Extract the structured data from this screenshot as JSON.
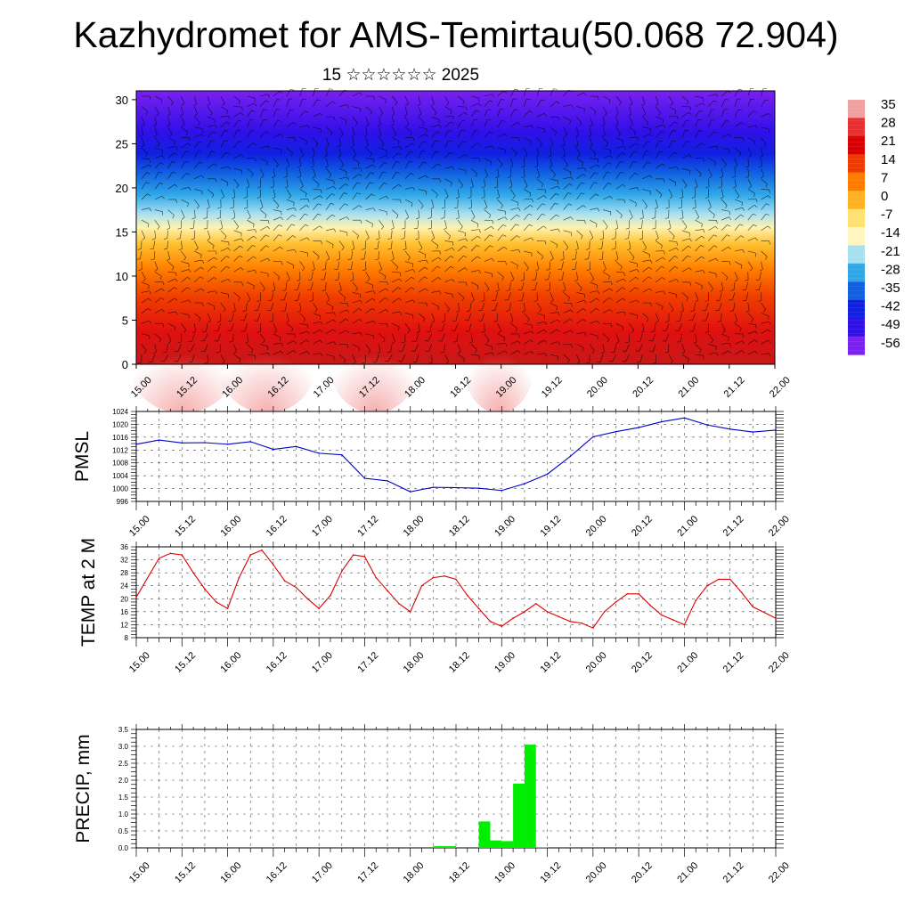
{
  "title": "Kazhydromet for AMS-Temirtau(50.068 72.904)",
  "subtitle": "15 ☆☆☆☆☆☆ 2025",
  "time_labels": [
    "15.00",
    "15.12",
    "16.00",
    "16.12",
    "17.00",
    "17.12",
    "18.00",
    "18.12",
    "19.00",
    "19.12",
    "20.00",
    "20.12",
    "21.00",
    "21.12",
    "22.00"
  ],
  "colors": {
    "pmsl_line": "#0000cc",
    "temp_line": "#dd0000",
    "precip_bar": "#00ee00",
    "grid": "#000000"
  },
  "chart_data": [
    {
      "type": "heatmap",
      "name": "temperature-cross-section",
      "xlabel": "",
      "ylabel": "",
      "ylim": [
        0,
        31
      ],
      "y_ticks": [
        0,
        5,
        10,
        15,
        20,
        25,
        30
      ],
      "x_tick_labels": [
        "15.00",
        "15.12",
        "16.00",
        "16.12",
        "17.00",
        "17.12",
        "18.00",
        "18.12",
        "19.00",
        "19.12",
        "20.00",
        "20.12",
        "21.00",
        "21.12",
        "22.00"
      ],
      "colorbar": {
        "labels": [
          "35",
          "28",
          "21",
          "14",
          "7",
          "0",
          "-7",
          "-14",
          "-21",
          "-28",
          "-35",
          "-42",
          "-49",
          "-56"
        ],
        "stops": [
          "#f0a0a0",
          "#e83030",
          "#d80000",
          "#ee3a00",
          "#ff7a00",
          "#ffb020",
          "#ffe070",
          "#fff6c0",
          "#a8e0f0",
          "#30a8e8",
          "#1060e0",
          "#1020e0",
          "#3010e8",
          "#7a20f0"
        ]
      },
      "layers": [
        {
          "level": 0,
          "temp": 30
        },
        {
          "level": 5,
          "temp": 22
        },
        {
          "level": 10,
          "temp": 12
        },
        {
          "level": 15,
          "temp": -10
        },
        {
          "level": 20,
          "temp": -30
        },
        {
          "level": 25,
          "temp": -55
        },
        {
          "level": 30,
          "temp": -60
        }
      ],
      "overlay": "wind barbs"
    },
    {
      "type": "line",
      "name": "pmsl",
      "ylabel": "PMSL",
      "ylim": [
        996,
        1024
      ],
      "y_ticks": [
        996,
        1000,
        1004,
        1008,
        1012,
        1016,
        1020,
        1024
      ],
      "x_tick_labels": [
        "15.00",
        "15.12",
        "16.00",
        "16.12",
        "17.00",
        "17.12",
        "18.00",
        "18.12",
        "19.00",
        "19.12",
        "20.00",
        "20.12",
        "21.00",
        "21.12",
        "22.00"
      ],
      "x_range": [
        0,
        168
      ],
      "series": [
        {
          "x": [
            0,
            6,
            12,
            18,
            24,
            30,
            36,
            42,
            48,
            54,
            60,
            66,
            72,
            78,
            84,
            90,
            96,
            102,
            108,
            114,
            120,
            126,
            132,
            138,
            144,
            150,
            156,
            162,
            168
          ],
          "y": [
            1013.8,
            1015.1,
            1014.2,
            1014.3,
            1013.8,
            1014.6,
            1012.2,
            1013.1,
            1011.0,
            1010.5,
            1003.2,
            1002.4,
            999.0,
            1000.4,
            1000.3,
            1000.1,
            999.4,
            1001.5,
            1004.5,
            1010.0,
            1016.1,
            1017.7,
            1019.0,
            1020.8,
            1022.0,
            1019.8,
            1018.5,
            1017.6,
            1018.2
          ]
        }
      ]
    },
    {
      "type": "line",
      "name": "temp-2m",
      "ylabel": "TEMP at 2 M",
      "ylim": [
        8,
        36
      ],
      "y_ticks": [
        8,
        12,
        16,
        20,
        24,
        28,
        32,
        36
      ],
      "x_tick_labels": [
        "15.00",
        "15.12",
        "16.00",
        "16.12",
        "17.00",
        "17.12",
        "18.00",
        "18.12",
        "19.00",
        "19.12",
        "20.00",
        "20.12",
        "21.00",
        "21.12",
        "22.00"
      ],
      "x_range": [
        0,
        168
      ],
      "series": [
        {
          "x": [
            0,
            6,
            9,
            12,
            15,
            18,
            21,
            24,
            27,
            30,
            33,
            36,
            39,
            42,
            45,
            48,
            51,
            54,
            57,
            60,
            63,
            66,
            69,
            72,
            75,
            78,
            81,
            84,
            87,
            90,
            93,
            96,
            99,
            102,
            105,
            108,
            111,
            114,
            117,
            120,
            123,
            126,
            129,
            132,
            135,
            138,
            141,
            144,
            147,
            150,
            153,
            156,
            159,
            162,
            168
          ],
          "y": [
            20.5,
            32.5,
            34.0,
            33.5,
            28.0,
            23.0,
            19.0,
            17.0,
            26.5,
            33.5,
            35.0,
            30.5,
            25.5,
            23.5,
            20.0,
            17.0,
            21.0,
            28.5,
            33.5,
            33.0,
            26.5,
            22.5,
            18.5,
            16.0,
            24.0,
            26.5,
            27.0,
            26.0,
            21.0,
            17.0,
            13.0,
            11.5,
            14.0,
            16.0,
            18.5,
            16.0,
            14.5,
            13.0,
            12.5,
            11.0,
            16.0,
            19.0,
            21.5,
            21.5,
            18.0,
            15.0,
            13.5,
            12.0,
            19.5,
            24.0,
            26.0,
            26.0,
            22.0,
            17.5,
            14.0
          ]
        }
      ]
    },
    {
      "type": "bar",
      "name": "precip",
      "ylabel": "PRECIP, mm",
      "ylim": [
        0,
        3.5
      ],
      "y_ticks": [
        "0.0",
        "0.5",
        "1.0",
        "1.5",
        "2.0",
        "2.5",
        "3.0",
        "3.5"
      ],
      "x_tick_labels": [
        "15.00",
        "15.12",
        "16.00",
        "16.12",
        "17.00",
        "17.12",
        "18.00",
        "18.12",
        "19.00",
        "19.12",
        "20.00",
        "20.12",
        "21.00",
        "21.12",
        "22.00"
      ],
      "x_range": [
        0,
        168
      ],
      "bars": [
        {
          "x0": 78,
          "x1": 84,
          "value": 0.05
        },
        {
          "x0": 90,
          "x1": 93,
          "value": 0.78
        },
        {
          "x0": 93,
          "x1": 96,
          "value": 0.22
        },
        {
          "x0": 96,
          "x1": 99,
          "value": 0.2
        },
        {
          "x0": 99,
          "x1": 102,
          "value": 1.9
        },
        {
          "x0": 102,
          "x1": 105,
          "value": 3.05
        },
        {
          "x0": 105,
          "x1": 108,
          "value": 0.02
        }
      ]
    }
  ]
}
